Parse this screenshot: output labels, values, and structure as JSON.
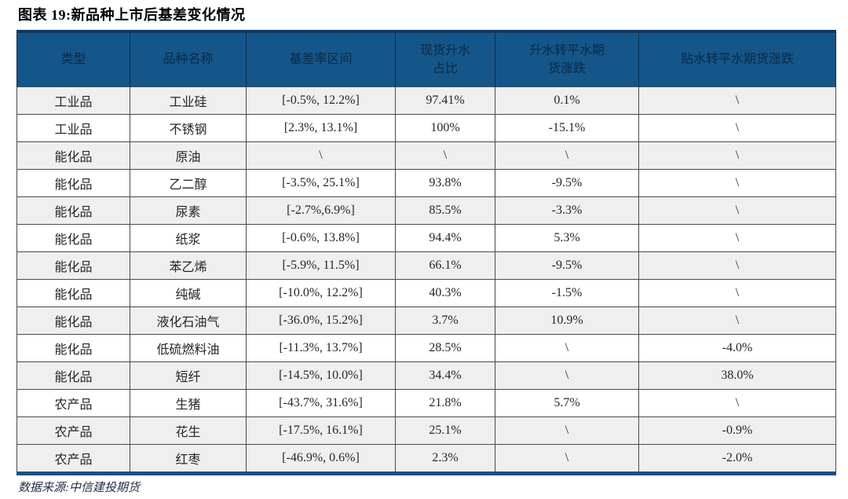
{
  "figure": {
    "title": "图表 19:新品种上市后基差变化情况",
    "source_note": "数据来源:中信建投期货"
  },
  "colors": {
    "header_bg": "#14568a",
    "header_text": "#0a2a45",
    "table_top_border": "#0e3a5e",
    "table_bottom_border": "#1c5080",
    "grid_line": "#4a4a4a",
    "shaded_row_bg": "#efefef",
    "plain_row_bg": "#ffffff",
    "body_text": "#262626"
  },
  "chart_data": {
    "type": "table",
    "title": "新品种上市后基差变化情况",
    "columns": [
      "类型",
      "品种名称",
      "基差率区间",
      "现货升水\n占比",
      "升水转平水期\n货涨跌",
      "贴水转平水期货涨跌"
    ],
    "rows": [
      {
        "cells": [
          "工业品",
          "工业硅",
          "[-0.5%, 12.2%]",
          "97.41%",
          "0.1%",
          "\\"
        ],
        "shaded": true
      },
      {
        "cells": [
          "工业品",
          "不锈钢",
          "[2.3%, 13.1%]",
          "100%",
          "-15.1%",
          "\\"
        ],
        "shaded": false
      },
      {
        "cells": [
          "能化品",
          "原油",
          "\\",
          "\\",
          "\\",
          "\\"
        ],
        "shaded": true
      },
      {
        "cells": [
          "能化品",
          "乙二醇",
          "[-3.5%, 25.1%]",
          "93.8%",
          "-9.5%",
          "\\"
        ],
        "shaded": false
      },
      {
        "cells": [
          "能化品",
          "尿素",
          "[-2.7%,6.9%]",
          "85.5%",
          "-3.3%",
          "\\"
        ],
        "shaded": true
      },
      {
        "cells": [
          "能化品",
          "纸浆",
          "[-0.6%, 13.8%]",
          "94.4%",
          "5.3%",
          "\\"
        ],
        "shaded": false
      },
      {
        "cells": [
          "能化品",
          "苯乙烯",
          "[-5.9%, 11.5%]",
          "66.1%",
          "-9.5%",
          "\\"
        ],
        "shaded": true
      },
      {
        "cells": [
          "能化品",
          "纯碱",
          "[-10.0%, 12.2%]",
          "40.3%",
          "-1.5%",
          "\\"
        ],
        "shaded": false
      },
      {
        "cells": [
          "能化品",
          "液化石油气",
          "[-36.0%, 15.2%]",
          "3.7%",
          "10.9%",
          "\\"
        ],
        "shaded": true
      },
      {
        "cells": [
          "能化品",
          "低硫燃料油",
          "[-11.3%, 13.7%]",
          "28.5%",
          "\\",
          "-4.0%"
        ],
        "shaded": false
      },
      {
        "cells": [
          "能化品",
          "短纤",
          "[-14.5%, 10.0%]",
          "34.4%",
          "\\",
          "38.0%"
        ],
        "shaded": true
      },
      {
        "cells": [
          "农产品",
          "生猪",
          "[-43.7%, 31.6%]",
          "21.8%",
          "5.7%",
          "\\"
        ],
        "shaded": false
      },
      {
        "cells": [
          "农产品",
          "花生",
          "[-17.5%, 16.1%]",
          "25.1%",
          "\\",
          "-0.9%"
        ],
        "shaded": true
      },
      {
        "cells": [
          "农产品",
          "红枣",
          "[-46.9%, 0.6%]",
          "2.3%",
          "\\",
          "-2.0%"
        ],
        "shaded": true
      }
    ]
  }
}
